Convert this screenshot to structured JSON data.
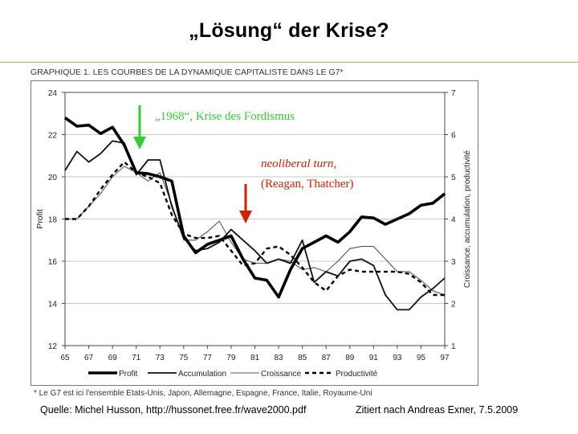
{
  "slide": {
    "title": "„Lösung“ der Krise?",
    "caption": "GRAPHIQUE 1. LES COURBES DE LA DYNAMIQUE CAPITALISTE DANS LE G7*",
    "footnote": "* Le G7 est ici l'ensemble Etats-Unis, Japon, Allemagne, Espagne, France, Italie, Royaume-Uni",
    "source": "Quelle: Michel Husson, http://hussonet.free.fr/wave2000.pdf",
    "cited": "Zitiert nach Andreas Exner, 7.5.2009"
  },
  "annotations": {
    "a1968": "„1968“, Krise des Fordismus",
    "neo_line1": "neoliberal turn,",
    "neo_line2": "(Reagan, Thatcher)",
    "color_1968": "#33cc33",
    "color_neo": "#cc2200"
  },
  "chart_data": {
    "type": "line",
    "title": "GRAPHIQUE 1. LES COURBES DE LA DYNAMIQUE CAPITALISTE DANS LE G7*",
    "xlabel": "",
    "ylabel": "Profit",
    "y2label": "Croissance, accumulation, productivité",
    "xlim": [
      65,
      97
    ],
    "xticks": [
      65,
      67,
      69,
      71,
      73,
      75,
      77,
      79,
      81,
      83,
      85,
      87,
      89,
      91,
      93,
      95,
      97
    ],
    "ylim": [
      12,
      24
    ],
    "yticks": [
      12,
      14,
      16,
      18,
      20,
      22,
      24
    ],
    "y2lim": [
      1,
      7
    ],
    "y2ticks": [
      1,
      2,
      3,
      4,
      5,
      6,
      7
    ],
    "grid": true,
    "legend": "bottom",
    "series": [
      {
        "name": "Profit",
        "axis": "left",
        "style": "thick",
        "x": [
          65,
          66,
          67,
          68,
          69,
          70,
          71,
          72,
          73,
          74,
          75,
          76,
          77,
          78,
          79,
          80,
          81,
          82,
          83,
          84,
          85,
          86,
          87,
          88,
          89,
          90,
          91,
          92,
          93,
          94,
          95,
          96,
          97
        ],
        "y": [
          22.8,
          22.4,
          22.45,
          22.05,
          22.35,
          21.5,
          20.2,
          20.15,
          20.0,
          19.8,
          17.2,
          16.4,
          16.8,
          17.0,
          17.2,
          16.1,
          15.2,
          15.1,
          14.3,
          15.6,
          16.6,
          16.9,
          17.2,
          16.9,
          17.4,
          18.1,
          18.05,
          17.75,
          18.0,
          18.25,
          18.65,
          18.75,
          19.2
        ]
      },
      {
        "name": "Accumulation",
        "axis": "right",
        "style": "medium",
        "x": [
          65,
          66,
          67,
          68,
          69,
          70,
          71,
          72,
          73,
          74,
          75,
          76,
          77,
          78,
          79,
          80,
          81,
          82,
          83,
          84,
          85,
          86,
          87,
          88,
          89,
          90,
          91,
          92,
          93,
          94,
          95,
          96,
          97
        ],
        "y": [
          5.15,
          5.6,
          5.35,
          5.55,
          5.85,
          5.8,
          5.05,
          5.4,
          5.4,
          4.3,
          3.55,
          3.25,
          3.3,
          3.45,
          3.75,
          3.5,
          3.25,
          2.95,
          3.05,
          2.95,
          3.5,
          2.5,
          2.75,
          2.65,
          3.0,
          3.05,
          2.9,
          2.2,
          1.85,
          1.85,
          2.15,
          2.35,
          2.6
        ]
      },
      {
        "name": "Croissance",
        "axis": "right",
        "style": "thin",
        "x": [
          65,
          66,
          67,
          68,
          69,
          70,
          71,
          72,
          73,
          74,
          75,
          76,
          77,
          78,
          79,
          80,
          81,
          82,
          83,
          84,
          85,
          86,
          87,
          88,
          89,
          90,
          91,
          92,
          93,
          94,
          95,
          96,
          97
        ],
        "y": [
          4.0,
          4.0,
          4.3,
          4.6,
          5.0,
          5.25,
          5.1,
          4.9,
          5.1,
          4.35,
          3.5,
          3.5,
          3.7,
          3.95,
          3.45,
          3.05,
          2.95,
          2.95,
          3.05,
          3.0,
          2.8,
          2.85,
          2.75,
          3.0,
          3.3,
          3.35,
          3.35,
          3.05,
          2.75,
          2.75,
          2.55,
          2.3,
          2.2
        ]
      },
      {
        "name": "Productivité",
        "axis": "right",
        "style": "dashed",
        "x": [
          65,
          66,
          67,
          68,
          69,
          70,
          71,
          72,
          73,
          74,
          75,
          76,
          77,
          78,
          79,
          80,
          81,
          82,
          83,
          84,
          85,
          86,
          87,
          88,
          89,
          90,
          91,
          92,
          93,
          94,
          95,
          96,
          97
        ],
        "y": [
          4.0,
          4.0,
          4.3,
          4.7,
          5.05,
          5.35,
          5.1,
          5.0,
          4.85,
          4.1,
          3.65,
          3.55,
          3.55,
          3.6,
          3.25,
          2.9,
          2.95,
          3.3,
          3.35,
          3.15,
          2.85,
          2.5,
          2.3,
          2.65,
          2.8,
          2.75,
          2.75,
          2.75,
          2.75,
          2.7,
          2.5,
          2.2,
          2.2
        ]
      }
    ]
  }
}
